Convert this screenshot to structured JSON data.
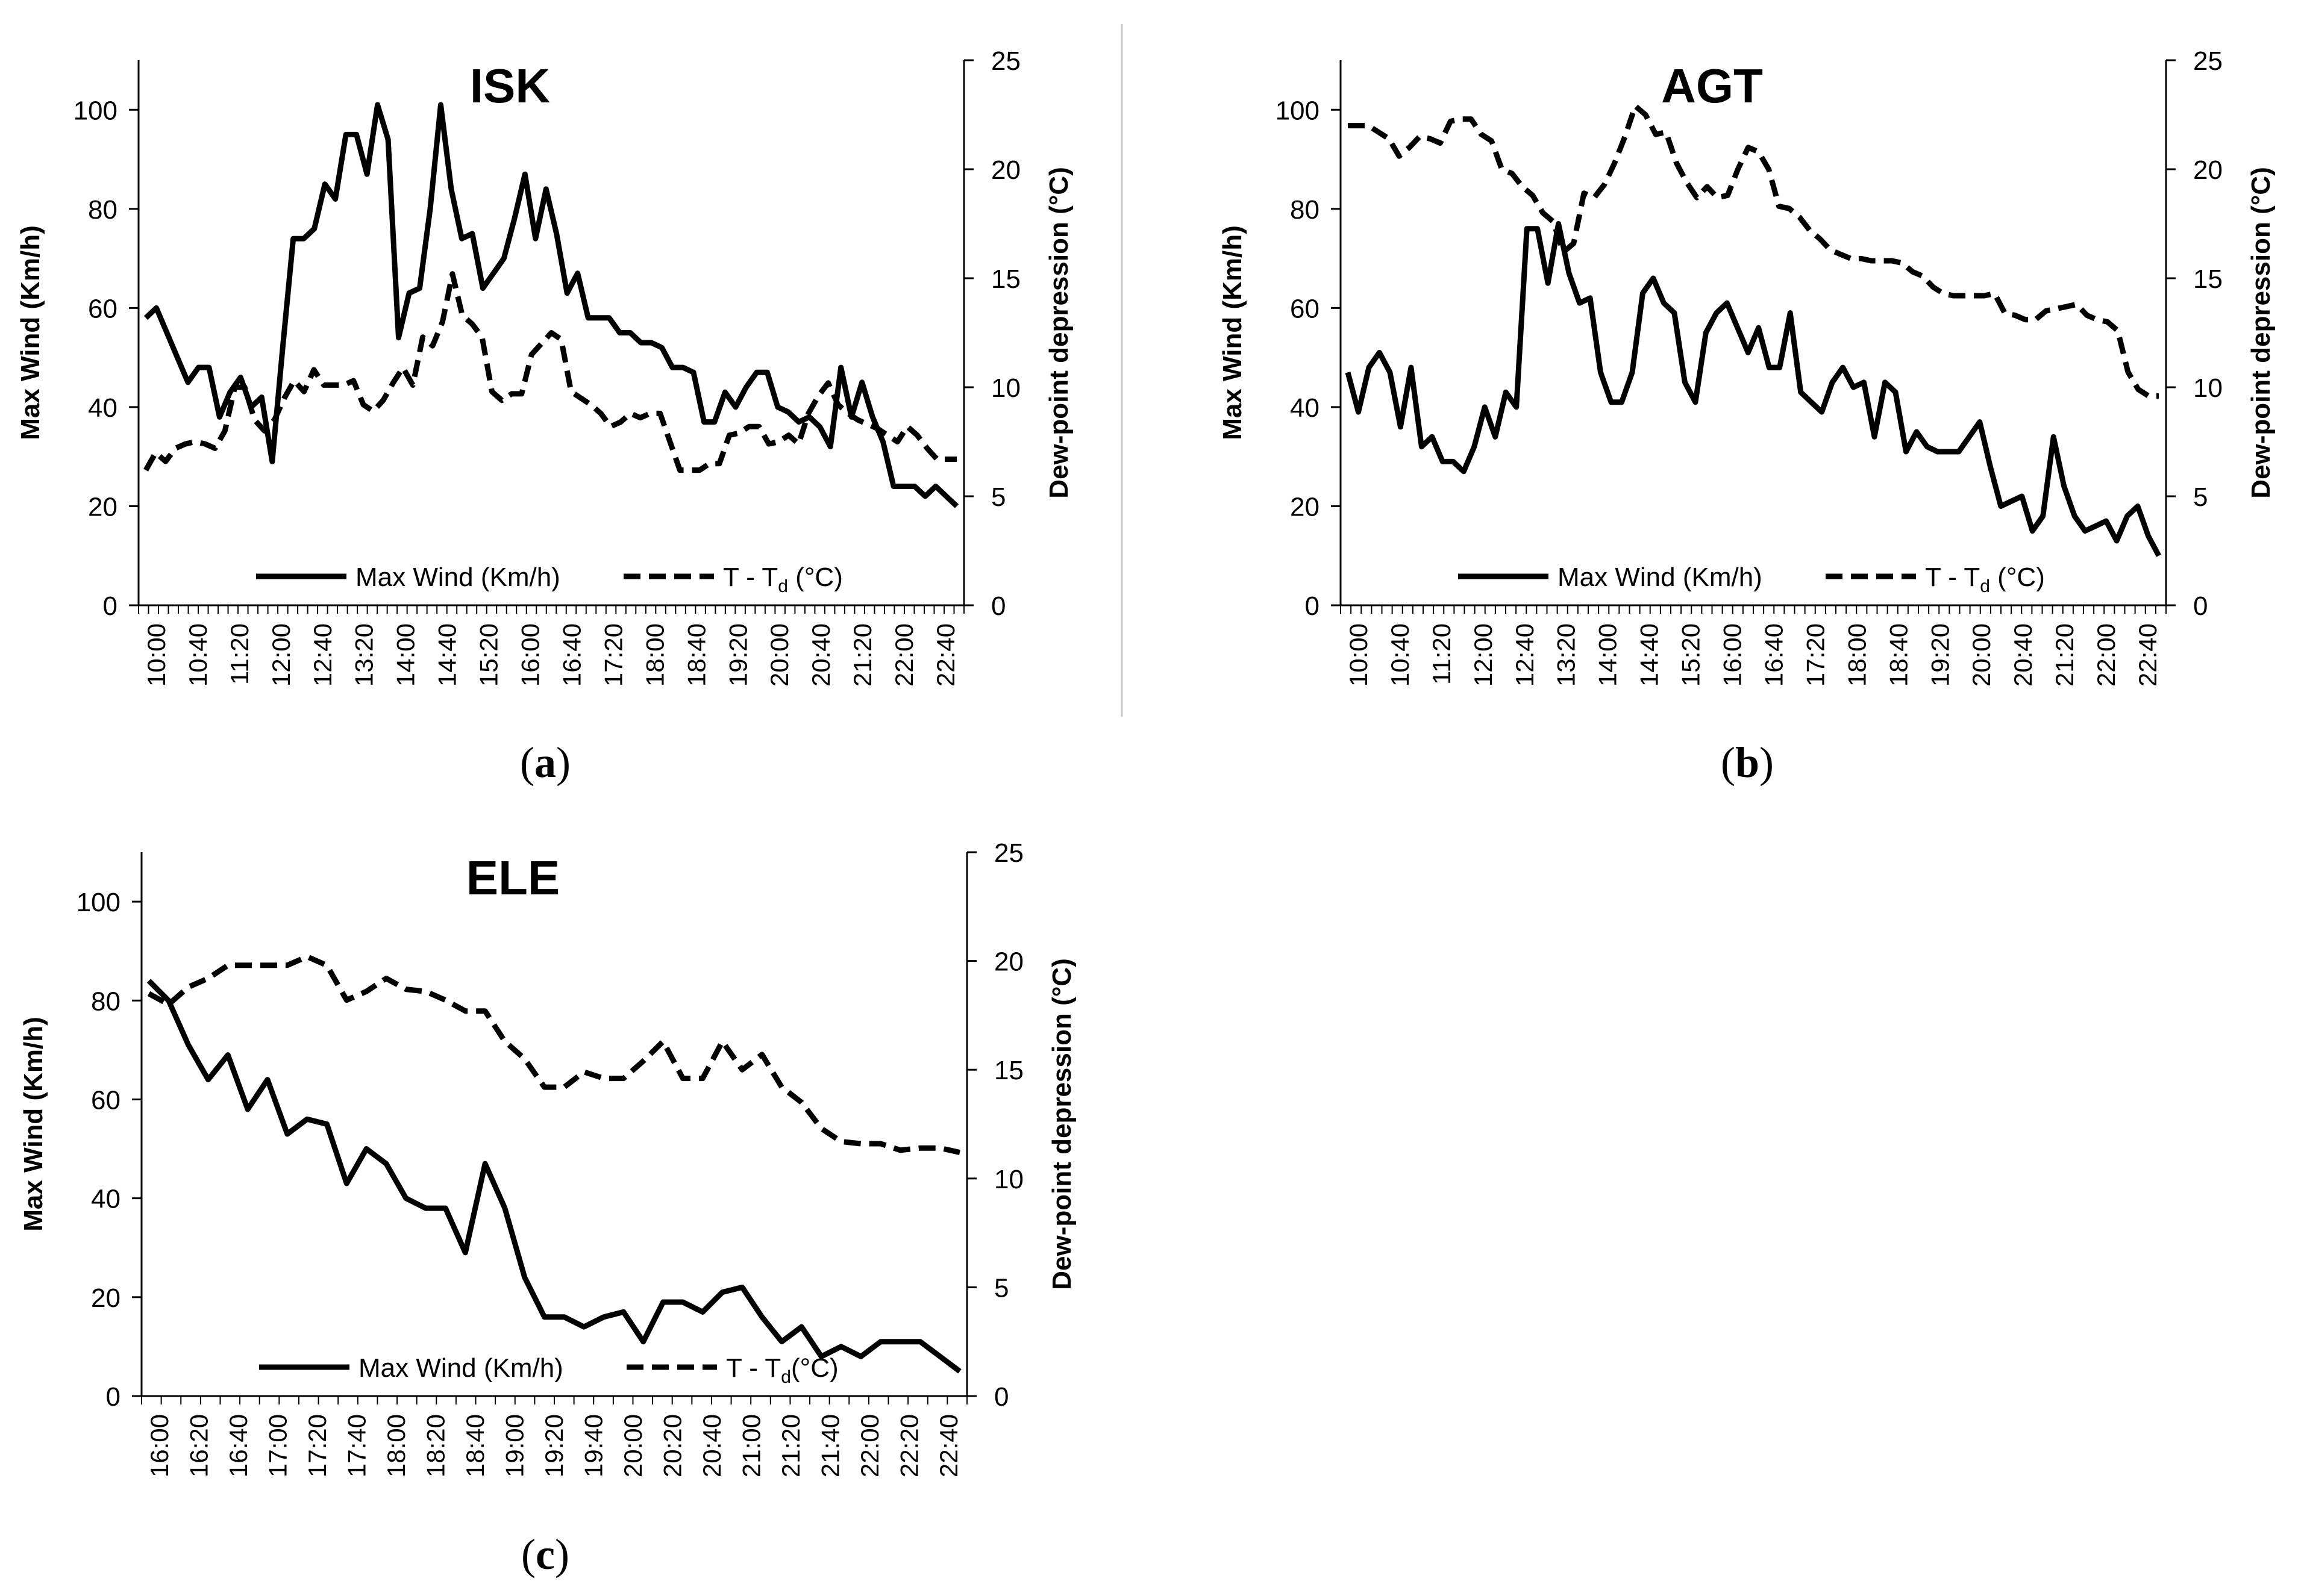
{
  "chart_data": [
    {
      "panel_label": "a",
      "type": "line",
      "title": "ISK",
      "ylabel_left": "Max Wind (Km/h)",
      "ylabel_right": "Dew-point depression (°C)",
      "ylim_left": [
        0,
        110
      ],
      "ylim_right": [
        0,
        25
      ],
      "yticks_left": [
        "0",
        "20",
        "40",
        "60",
        "80",
        "100"
      ],
      "yticks_right": [
        "0",
        "5",
        "10",
        "15",
        "20",
        "25"
      ],
      "x_labels": [
        "10:00",
        "10:40",
        "11:20",
        "12:00",
        "12:40",
        "13:20",
        "14:00",
        "14:40",
        "15:20",
        "16:00",
        "16:40",
        "17:20",
        "18:00",
        "18:40",
        "19:20",
        "20:00",
        "20:40",
        "21:20",
        "22:00",
        "22:40"
      ],
      "legend": {
        "placement": "bottom-center",
        "entries": [
          {
            "label": "Max Wind (Km/h)",
            "style": "solid"
          },
          {
            "label_main": "T - T",
            "label_sub": "d",
            "label_tail": " (°C)",
            "style": "dashed"
          }
        ]
      },
      "series": [
        {
          "name": "Max Wind (Km/h)",
          "axis": "left",
          "style": "solid",
          "values": [
            58,
            60,
            55,
            50,
            45,
            48,
            48,
            38,
            43,
            46,
            40,
            42,
            29,
            52,
            74,
            74,
            76,
            85,
            82,
            95,
            95,
            87,
            101,
            94,
            54,
            63,
            64,
            80,
            101,
            84,
            74,
            75,
            64,
            67,
            70,
            78,
            87,
            74,
            84,
            75,
            63,
            67,
            58,
            58,
            58,
            55,
            55,
            53,
            53,
            52,
            48,
            48,
            47,
            37,
            37,
            43,
            40,
            44,
            47,
            47,
            40,
            39,
            37,
            38,
            36,
            32,
            48,
            38,
            45,
            38,
            33,
            24,
            24,
            24,
            22,
            24,
            22,
            20
          ]
        },
        {
          "name": "T - Td (°C)",
          "axis": "right",
          "style": "dashed",
          "values": [
            6.2,
            7.0,
            6.6,
            7.2,
            7.4,
            7.5,
            7.4,
            7.2,
            8.0,
            10.0,
            10.0,
            8.5,
            8.0,
            8.5,
            9.5,
            10.3,
            9.8,
            10.8,
            10.1,
            10.1,
            10.1,
            10.3,
            9.2,
            8.9,
            9.4,
            10.2,
            10.9,
            10.1,
            12.3,
            11.9,
            13.0,
            15.2,
            13.3,
            12.9,
            12.3,
            9.8,
            9.4,
            9.7,
            9.7,
            11.5,
            12.0,
            12.5,
            12.2,
            9.8,
            9.5,
            9.2,
            8.8,
            8.2,
            8.4,
            8.8,
            8.6,
            8.8,
            8.8,
            7.5,
            6.2,
            6.2,
            6.2,
            6.5,
            6.5,
            7.8,
            7.9,
            8.2,
            8.2,
            7.4,
            7.5,
            7.8,
            7.4,
            8.8,
            9.6,
            10.2,
            9.2,
            8.8,
            8.5,
            8.3,
            8.1,
            7.8,
            7.5,
            8.2,
            7.8,
            7.2,
            6.7,
            6.7,
            6.7
          ]
        }
      ]
    },
    {
      "panel_label": "b",
      "type": "line",
      "title": "AGT",
      "ylabel_left": "Max Wind (Km/h)",
      "ylabel_right": "Dew-point depression (°C)",
      "ylim_left": [
        0,
        110
      ],
      "ylim_right": [
        0,
        25
      ],
      "yticks_left": [
        "0",
        "20",
        "40",
        "60",
        "80",
        "100"
      ],
      "yticks_right": [
        "0",
        "5",
        "10",
        "15",
        "20",
        "25"
      ],
      "x_labels": [
        "10:00",
        "10:40",
        "11:20",
        "12:00",
        "12:40",
        "13:20",
        "14:00",
        "14:40",
        "15:20",
        "16:00",
        "16:40",
        "17:20",
        "18:00",
        "18:40",
        "19:20",
        "20:00",
        "20:40",
        "21:20",
        "22:00",
        "22:40"
      ],
      "legend": {
        "placement": "bottom-center",
        "entries": [
          {
            "label": "Max Wind (Km/h)",
            "style": "solid"
          },
          {
            "label_main": "T - T",
            "label_sub": "d",
            "label_tail": " (°C)",
            "style": "dashed"
          }
        ]
      },
      "series": [
        {
          "name": "Max Wind (Km/h)",
          "axis": "left",
          "style": "solid",
          "values": [
            47,
            39,
            48,
            51,
            47,
            36,
            48,
            32,
            34,
            29,
            29,
            27,
            32,
            40,
            34,
            43,
            40,
            76,
            76,
            65,
            77,
            67,
            61,
            62,
            47,
            41,
            41,
            47,
            63,
            66,
            61,
            59,
            45,
            41,
            55,
            59,
            61,
            56,
            51,
            56,
            48,
            48,
            59,
            43,
            41,
            39,
            45,
            48,
            44,
            45,
            34,
            45,
            43,
            31,
            35,
            32,
            31,
            31,
            31,
            34,
            37,
            28,
            20,
            21,
            22,
            15,
            18,
            34,
            24,
            18,
            15,
            16,
            17,
            13,
            18,
            20,
            14,
            10
          ]
        },
        {
          "name": "T - Td (°C)",
          "axis": "right",
          "style": "dashed",
          "values": [
            22.0,
            22.0,
            22.0,
            21.7,
            21.4,
            20.6,
            21.0,
            21.5,
            21.4,
            21.2,
            22.2,
            22.3,
            22.3,
            21.6,
            21.3,
            20.0,
            19.8,
            19.2,
            18.8,
            18.0,
            17.6,
            16.2,
            16.6,
            18.9,
            18.7,
            19.3,
            20.3,
            21.5,
            22.9,
            22.5,
            21.6,
            21.7,
            20.3,
            19.4,
            18.7,
            19.2,
            18.7,
            18.8,
            20.0,
            21.0,
            20.8,
            20.0,
            18.3,
            18.2,
            17.8,
            17.2,
            16.8,
            16.3,
            16.1,
            15.9,
            15.9,
            15.8,
            15.8,
            15.8,
            15.7,
            15.3,
            15.1,
            14.6,
            14.3,
            14.2,
            14.2,
            14.2,
            14.2,
            14.3,
            13.4,
            13.3,
            13.1,
            13.1,
            13.5,
            13.6,
            13.7,
            13.8,
            13.3,
            13.1,
            13.0,
            12.6,
            10.7,
            9.9,
            9.6,
            9.6
          ]
        }
      ]
    },
    {
      "panel_label": "c",
      "type": "line",
      "title": "ELE",
      "ylabel_left": "Max Wind (Km/h)",
      "ylabel_right": "Dew-point depression (°C)",
      "ylim_left": [
        0,
        110
      ],
      "ylim_right": [
        0,
        25
      ],
      "yticks_left": [
        "0",
        "20",
        "40",
        "60",
        "80",
        "100"
      ],
      "yticks_right": [
        "0",
        "5",
        "10",
        "15",
        "20",
        "25"
      ],
      "x_labels": [
        "16:00",
        "16:20",
        "16:40",
        "17:00",
        "17:20",
        "17:40",
        "18:00",
        "18:20",
        "18:40",
        "19:00",
        "19:20",
        "19:40",
        "20:00",
        "20:20",
        "20:40",
        "21:00",
        "21:20",
        "21:40",
        "22:00",
        "22:20",
        "22:40"
      ],
      "legend": {
        "placement": "bottom-center",
        "entries": [
          {
            "label": "Max Wind (Km/h)",
            "style": "solid"
          },
          {
            "label_main": "T - T",
            "label_sub": "d",
            "label_tail": "(°C)",
            "style": "dashed"
          }
        ]
      },
      "series": [
        {
          "name": "Max Wind (Km/h)",
          "axis": "left",
          "style": "solid",
          "values": [
            84,
            80,
            71,
            64,
            69,
            58,
            64,
            53,
            56,
            55,
            43,
            50,
            47,
            40,
            38,
            38,
            29,
            47,
            38,
            24,
            16,
            16,
            14,
            16,
            17,
            11,
            19,
            19,
            17,
            21,
            22,
            16,
            11,
            14,
            8,
            10,
            8,
            11,
            11,
            11,
            8,
            5
          ]
        },
        {
          "name": "T - Td (°C)",
          "axis": "right",
          "style": "dashed",
          "values": [
            18.5,
            18.0,
            18.8,
            19.2,
            19.8,
            19.8,
            19.8,
            19.8,
            20.2,
            19.8,
            18.2,
            18.6,
            19.2,
            18.7,
            18.6,
            18.2,
            17.7,
            17.7,
            16.3,
            15.5,
            14.2,
            14.2,
            14.9,
            14.6,
            14.6,
            15.4,
            16.3,
            14.6,
            14.6,
            16.3,
            15.0,
            15.7,
            14.2,
            13.5,
            12.3,
            11.7,
            11.6,
            11.6,
            11.3,
            11.4,
            11.4,
            11.2
          ]
        }
      ]
    }
  ]
}
